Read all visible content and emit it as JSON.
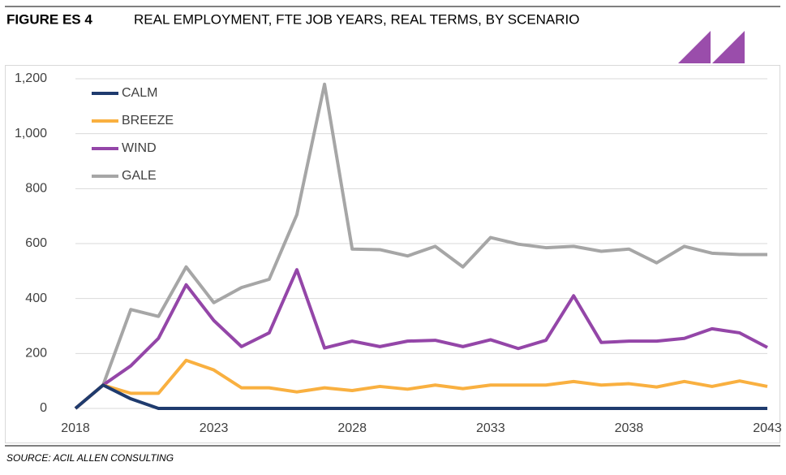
{
  "chart_data": {
    "type": "line",
    "figure_label": "FIGURE ES 4",
    "title": "REAL EMPLOYMENT, FTE JOB YEARS, REAL TERMS, BY SCENARIO",
    "source": "SOURCE: ACIL ALLEN CONSULTING",
    "x": [
      2018,
      2019,
      2020,
      2021,
      2022,
      2023,
      2024,
      2025,
      2026,
      2027,
      2028,
      2029,
      2030,
      2031,
      2032,
      2033,
      2034,
      2035,
      2036,
      2037,
      2038,
      2039,
      2040,
      2041,
      2042,
      2043
    ],
    "xlim": [
      2018,
      2043
    ],
    "xticks": [
      2018,
      2023,
      2028,
      2033,
      2038,
      2043
    ],
    "ylim": [
      0,
      1200
    ],
    "yticks": [
      0,
      200,
      400,
      600,
      800,
      {
        "value": 1000,
        "label": "1,000"
      },
      {
        "value": 1200,
        "label": "1,200"
      }
    ],
    "grid": true,
    "legend": "upper left",
    "series": [
      {
        "name": "CALM",
        "color": "#1f3b6e",
        "values": [
          0,
          85,
          35,
          0,
          0,
          0,
          0,
          0,
          0,
          0,
          0,
          0,
          0,
          0,
          0,
          0,
          0,
          0,
          0,
          0,
          0,
          0,
          0,
          0,
          0,
          0
        ]
      },
      {
        "name": "BREEZE",
        "color": "#f9b040",
        "values": [
          0,
          85,
          55,
          55,
          175,
          140,
          75,
          75,
          60,
          75,
          65,
          80,
          70,
          85,
          72,
          85,
          85,
          85,
          98,
          85,
          90,
          78,
          98,
          80,
          100,
          80
        ]
      },
      {
        "name": "WIND",
        "color": "#9446a8",
        "values": [
          0,
          85,
          155,
          255,
          450,
          320,
          225,
          275,
          505,
          220,
          245,
          225,
          245,
          248,
          225,
          250,
          218,
          248,
          410,
          240,
          245,
          245,
          255,
          290,
          275,
          222
        ]
      },
      {
        "name": "GALE",
        "color": "#a6a6a6",
        "values": [
          0,
          85,
          360,
          335,
          515,
          385,
          440,
          470,
          705,
          1180,
          580,
          578,
          555,
          590,
          515,
          622,
          598,
          585,
          590,
          572,
          580,
          530,
          590,
          565,
          560,
          560
        ]
      }
    ]
  }
}
